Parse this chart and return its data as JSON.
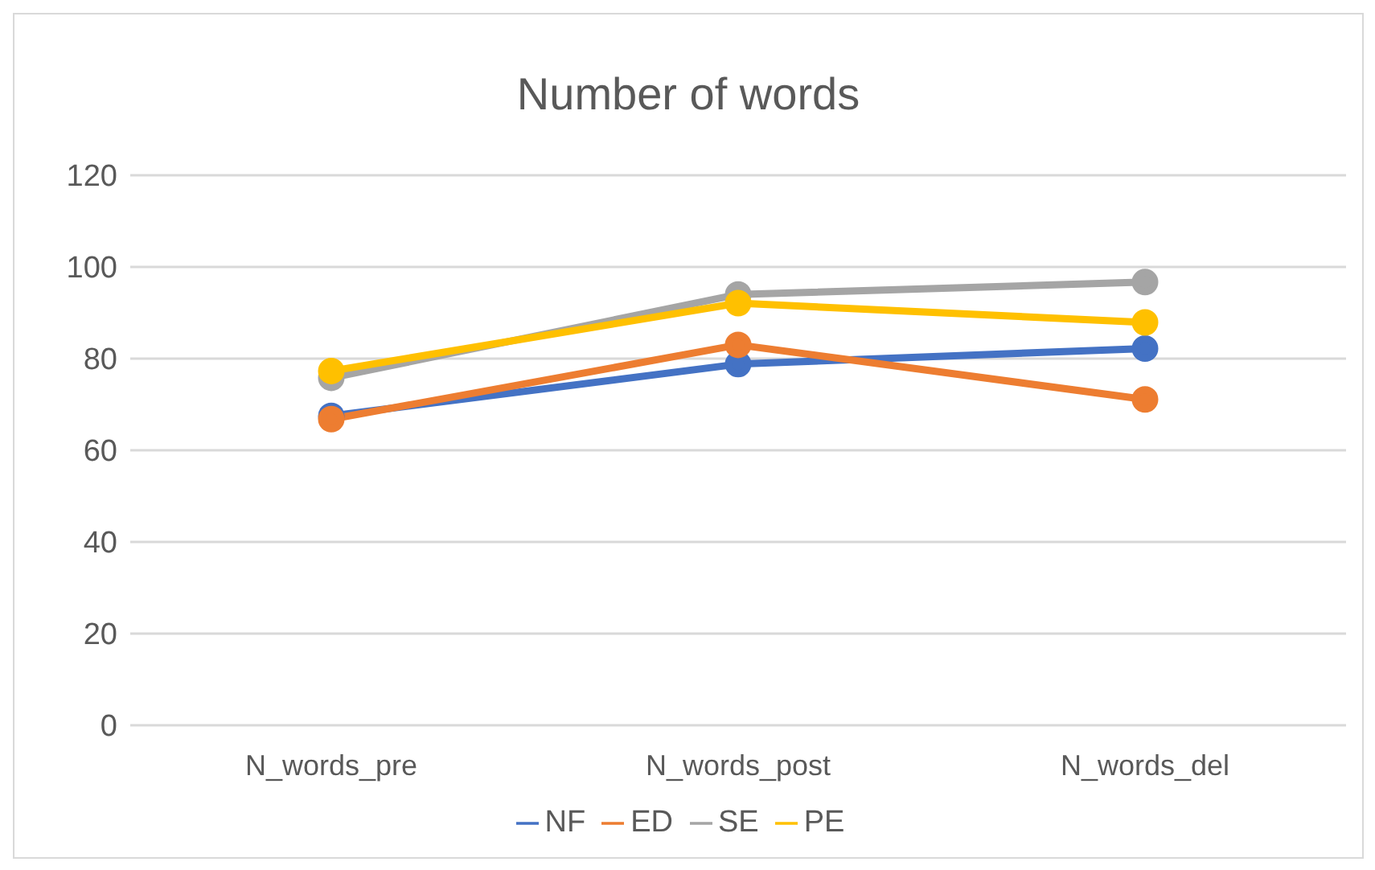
{
  "chart_data": {
    "type": "line",
    "title": "Number of words",
    "categories": [
      "N_words_pre",
      "N_words_post",
      "N_words_del"
    ],
    "series": [
      {
        "name": "NF",
        "color": "#4472c4",
        "values": [
          67.5,
          78.8,
          82.2
        ]
      },
      {
        "name": "ED",
        "color": "#ed7d31",
        "values": [
          66.8,
          83,
          71.1
        ]
      },
      {
        "name": "SE",
        "color": "#a5a5a5",
        "values": [
          75.8,
          94,
          96.7
        ]
      },
      {
        "name": "PE",
        "color": "#ffc000",
        "values": [
          77.3,
          92.1,
          87.9
        ]
      }
    ],
    "ylim": [
      0,
      120
    ],
    "yticks": [
      0,
      20,
      40,
      60,
      80,
      100,
      120
    ],
    "grid": "y",
    "legend": "bottom",
    "marker": "circle",
    "line_style": "solid"
  }
}
